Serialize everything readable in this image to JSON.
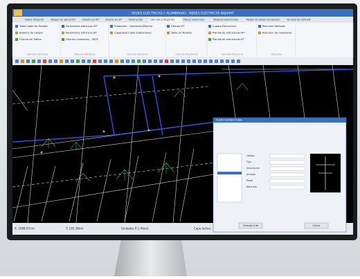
{
  "window": {
    "title": "REDES ELÉCTRICAS Y ALUMBRADO - REDES ELÉCTRICAS BAJA/MT"
  },
  "ribbon": {
    "tabs": [
      "Datos Proyecto",
      "Mapas de ubicación",
      "Diseño en MT",
      "Diseño en BT",
      "Iluminación",
      "Cálculos y Reportes",
      "Planos Eléctricos",
      "Redes/Instalaciones",
      "Redes de Datos Generales",
      "Accesorios GPS/3D"
    ],
    "groups": [
      {
        "label": "Cálculos Eléctricos",
        "buttons": [
          "Tabla Caída de Tensión",
          "Balance de Cargas",
          "Cálculo de Tráfico"
        ]
      },
      {
        "label": "Cálculos Eléctricos",
        "buttons": [
          "Parámetros eléctricos MT",
          "Parámetros eléctricos BT",
          "Cálculo Luminarias - ISE/P"
        ]
      },
      {
        "label": "Cálculos Eléctricos",
        "buttons": [
          "Protección - Operación/Mínimo",
          "Capacidad Cable Subterráneo"
        ]
      },
      {
        "label": "Cálculos Mecánicos",
        "buttons": [
          "Cálculo MT",
          "Tabla de Tendido"
        ]
      },
      {
        "label": "Cálculos Mecánicos",
        "buttons": [
          "Cuadro Estructural",
          "Planilla de estructuras MT",
          "Planilla de estructuras BT"
        ]
      },
      {
        "label": "Reportes",
        "buttons": [
          "Resumen Metrado",
          "Resumen de materiales"
        ]
      }
    ]
  },
  "status": [
    "X: 1068.07(m)",
    "Y: 195.39(m)",
    "Unidades P-1 (Rom)",
    "Capa Activa: ..."
  ],
  "dialog": {
    "title": "PLANO ESTRUCTURAL",
    "fields": [
      "Código",
      "Tipo",
      "Descripción",
      "Armado",
      "Poste",
      "Retenida"
    ],
    "buttons": [
      "Guardar Info",
      "Cerrar"
    ]
  }
}
